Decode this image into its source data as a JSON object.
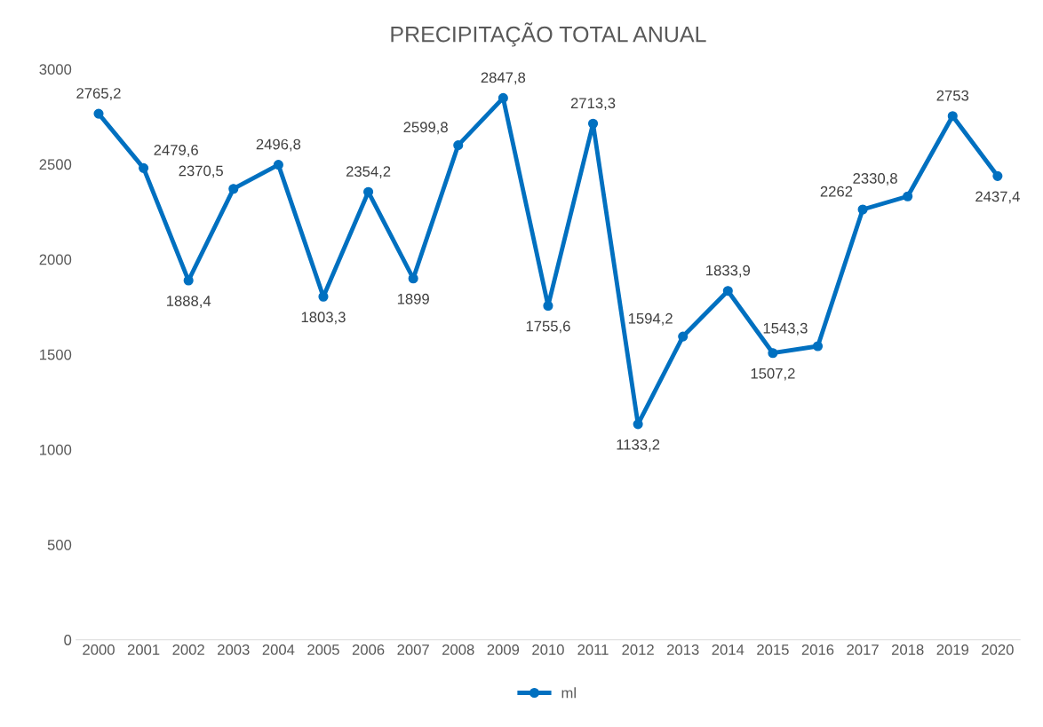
{
  "chart_data": {
    "type": "line",
    "title": "PRECIPITAÇÃO TOTAL ANUAL",
    "categories": [
      "2000",
      "2001",
      "2002",
      "2003",
      "2004",
      "2005",
      "2006",
      "2007",
      "2008",
      "2009",
      "2010",
      "2011",
      "2012",
      "2013",
      "2014",
      "2015",
      "2016",
      "2017",
      "2018",
      "2019",
      "2020"
    ],
    "series": [
      {
        "name": "ml",
        "color": "#0070c0",
        "values": [
          2765.2,
          2479.6,
          1888.4,
          2370.5,
          2496.8,
          1803.3,
          2354.2,
          1899,
          2599.8,
          2847.8,
          1755.6,
          2713.3,
          1133.2,
          1594.2,
          1833.9,
          1507.2,
          1543.3,
          2262,
          2330.8,
          2753,
          2437.4
        ],
        "value_labels": [
          "2765,2",
          "2479,6",
          "1888,4",
          "2370,5",
          "2496,8",
          "1803,3",
          "2354,2",
          "1899",
          "2599,8",
          "2847,8",
          "1755,6",
          "2713,3",
          "1133,2",
          "1594,2",
          "1833,9",
          "1507,2",
          "1543,3",
          "2262",
          "2330,8",
          "2753",
          "2437,4"
        ]
      }
    ],
    "ylim": [
      0,
      3000
    ],
    "yticks": [
      0,
      500,
      1000,
      1500,
      2000,
      2500,
      3000
    ],
    "grid": false,
    "legend": "bottom",
    "marker": "circle",
    "line_style": "solid"
  }
}
